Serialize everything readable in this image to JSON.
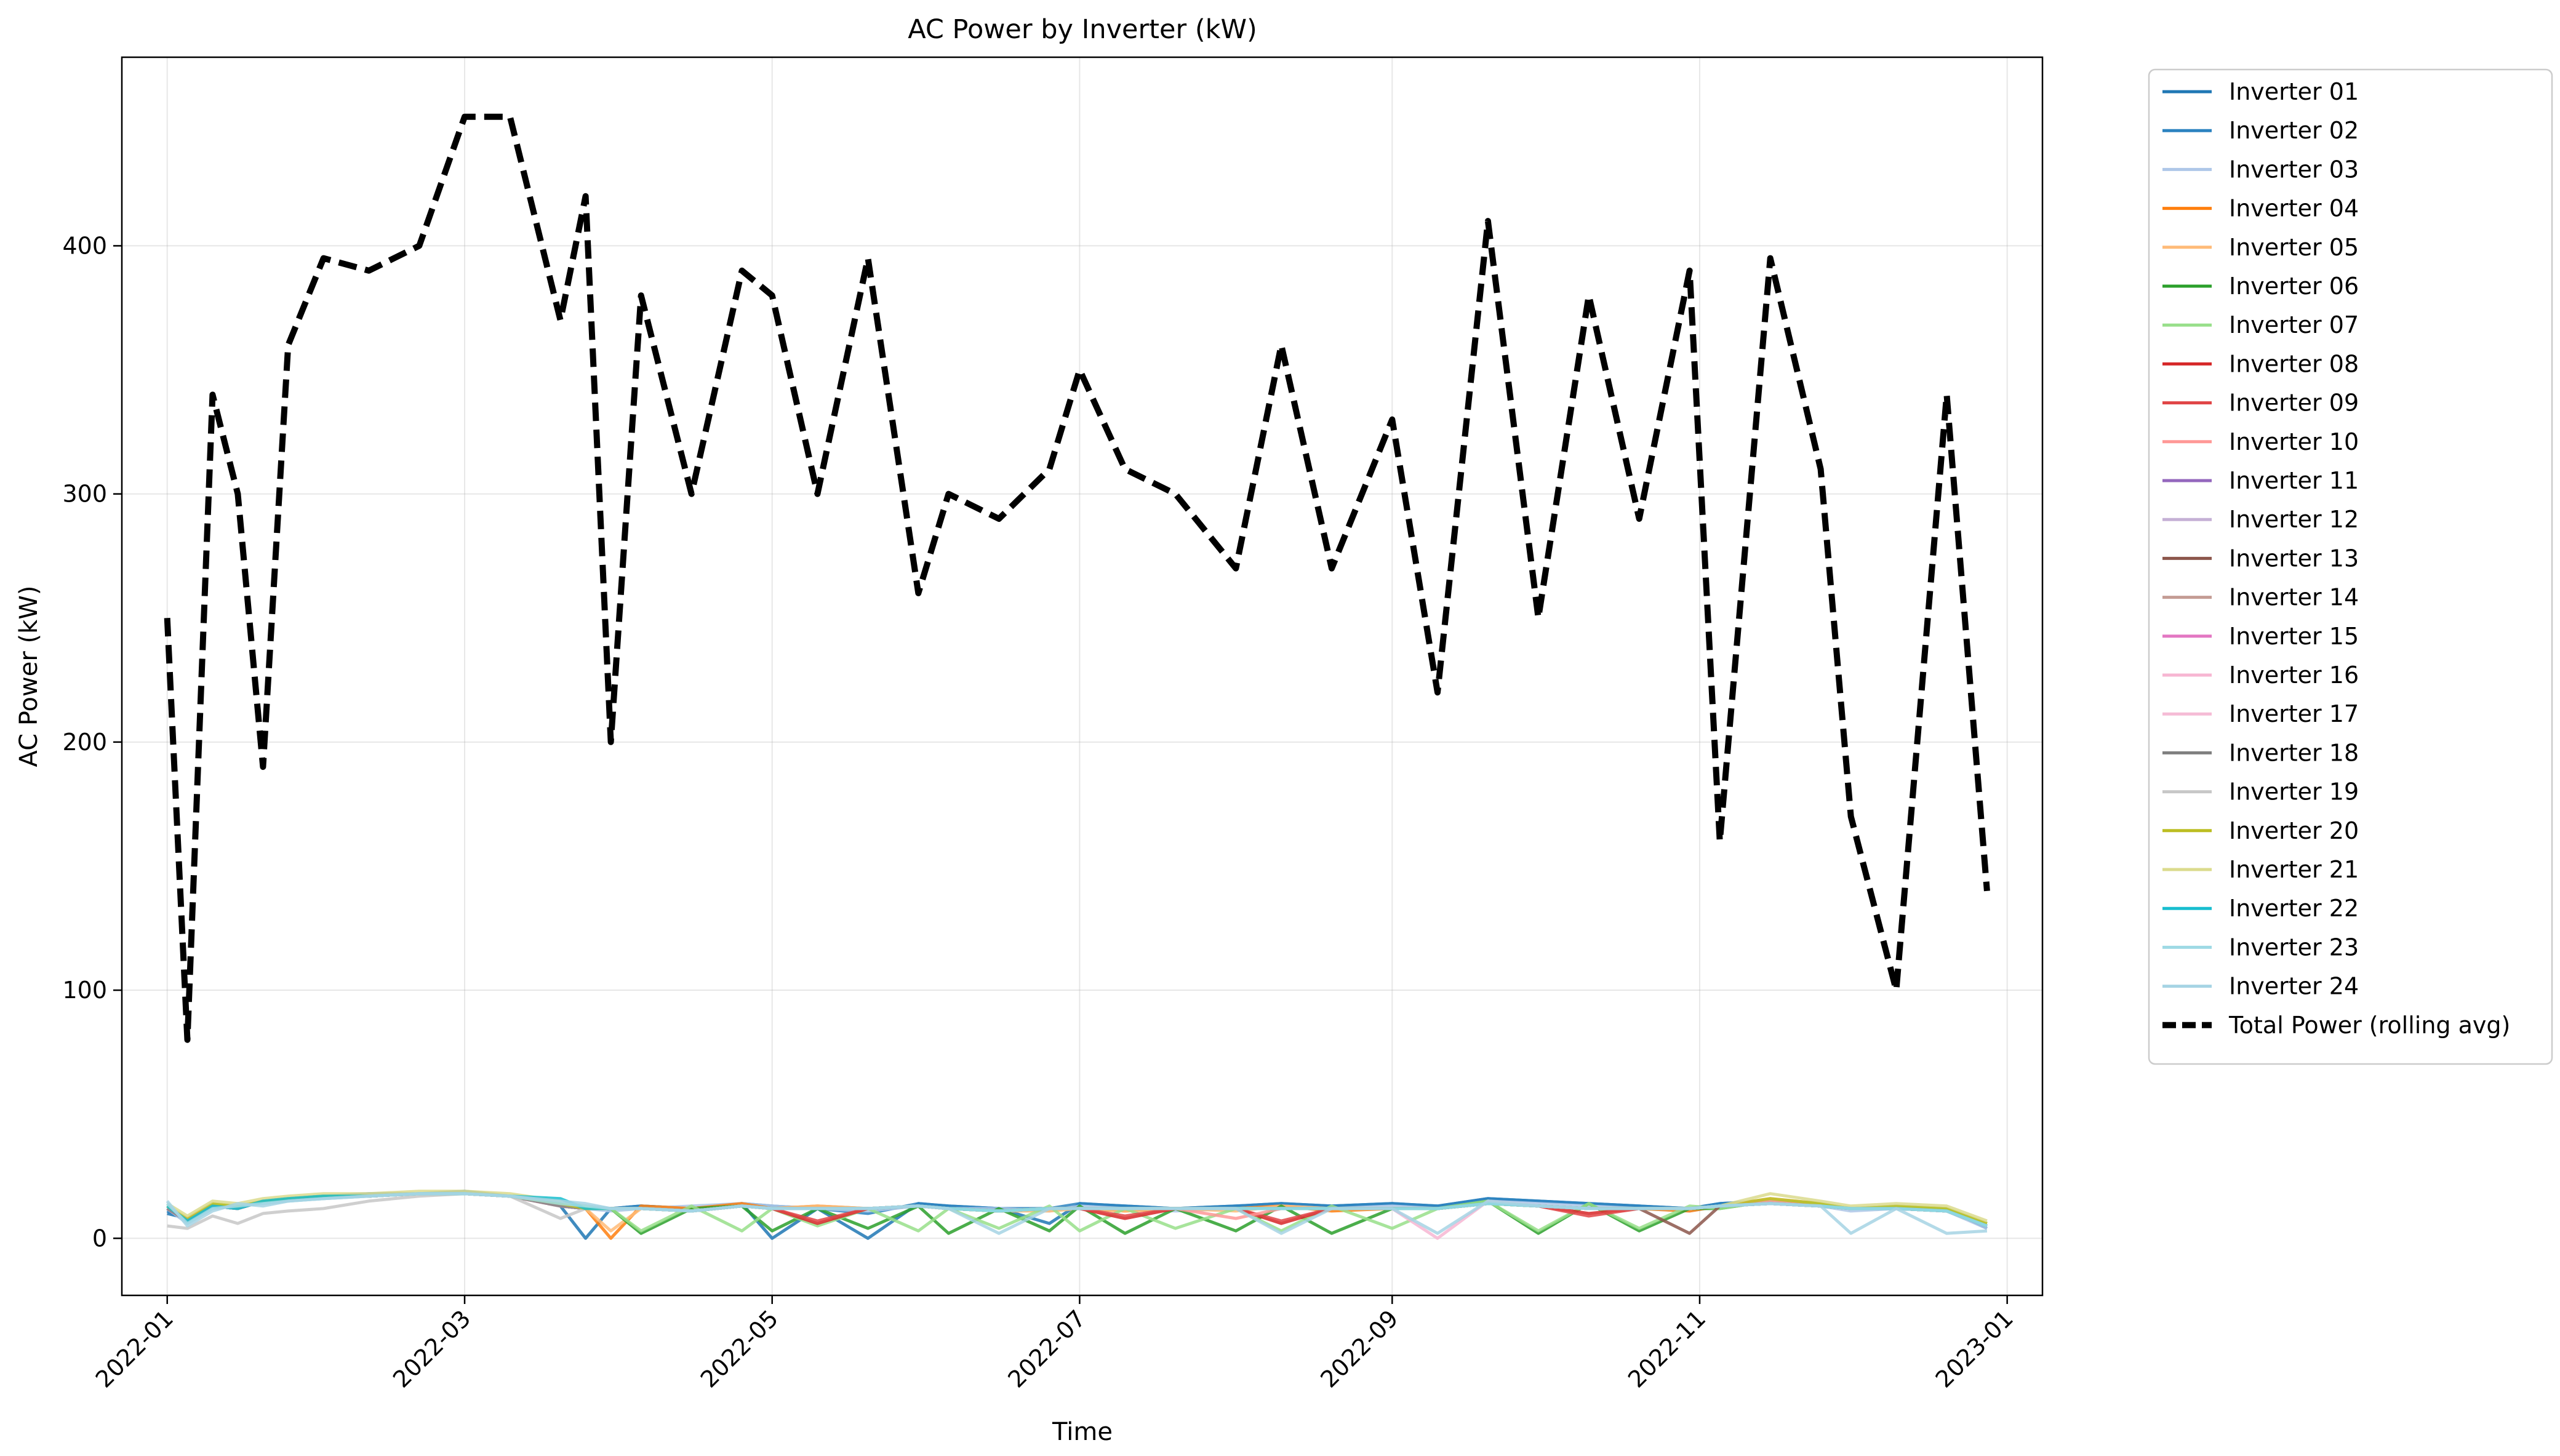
{
  "chart_data": {
    "type": "line",
    "title": "AC Power by Inverter (kW)",
    "xlabel": "Time",
    "ylabel": "AC Power (kW)",
    "x_ticks": [
      "2022-01",
      "2022-03",
      "2022-05",
      "2022-07",
      "2022-09",
      "2022-11",
      "2023-01"
    ],
    "y_ticks": [
      0,
      100,
      200,
      300,
      400
    ],
    "xlim": [
      "2021-12-23",
      "2023-01-08"
    ],
    "ylim": [
      -23,
      476
    ],
    "grid": true,
    "legend_position": "outside-top-right",
    "x": [
      "2022-01-01",
      "2022-01-05",
      "2022-01-10",
      "2022-01-15",
      "2022-01-20",
      "2022-01-25",
      "2022-02-01",
      "2022-02-10",
      "2022-02-20",
      "2022-03-01",
      "2022-03-10",
      "2022-03-20",
      "2022-03-25",
      "2022-03-30",
      "2022-04-05",
      "2022-04-15",
      "2022-04-25",
      "2022-05-01",
      "2022-05-10",
      "2022-05-20",
      "2022-05-30",
      "2022-06-05",
      "2022-06-15",
      "2022-06-25",
      "2022-07-01",
      "2022-07-10",
      "2022-07-20",
      "2022-08-01",
      "2022-08-10",
      "2022-08-20",
      "2022-09-01",
      "2022-09-10",
      "2022-09-20",
      "2022-09-30",
      "2022-10-10",
      "2022-10-20",
      "2022-10-30",
      "2022-11-05",
      "2022-11-15",
      "2022-11-25",
      "2022-12-01",
      "2022-12-10",
      "2022-12-20",
      "2022-12-28"
    ],
    "series": [
      {
        "name": "Total Power (rolling avg)",
        "color": "#000000",
        "values": [
          250,
          80,
          340,
          300,
          190,
          360,
          395,
          390,
          400,
          452,
          452,
          370,
          420,
          200,
          380,
          300,
          390,
          380,
          300,
          395,
          260,
          300,
          290,
          310,
          350,
          310,
          300,
          270,
          360,
          270,
          330,
          220,
          410,
          250,
          380,
          290,
          390,
          160,
          395,
          310,
          170,
          100,
          340,
          140
        ]
      }
    ],
    "inverter_series": [
      {
        "name": "Inverter 01",
        "color": "#1f77b4",
        "values": [
          10,
          8,
          14,
          12,
          15,
          16,
          17,
          17,
          18,
          18,
          17,
          13,
          0,
          12,
          13,
          12,
          14,
          0,
          12,
          0,
          14,
          13,
          12,
          6,
          14,
          13,
          12,
          13,
          14,
          13,
          14,
          13,
          16,
          15,
          14,
          13,
          12,
          14,
          15,
          14,
          12,
          13,
          12,
          4
        ]
      },
      {
        "name": "Inverter 02",
        "color": "#2c83c0",
        "values": [
          11,
          7,
          13,
          12,
          15,
          16,
          17,
          18,
          18,
          19,
          17,
          14,
          13,
          12,
          13,
          12,
          14,
          13,
          12,
          10,
          14,
          13,
          12,
          12,
          14,
          13,
          12,
          13,
          14,
          13,
          14,
          13,
          16,
          15,
          14,
          13,
          12,
          14,
          15,
          14,
          12,
          13,
          12,
          5
        ]
      },
      {
        "name": "Inverter 03",
        "color": "#aec7e8",
        "values": [
          12,
          6,
          12,
          13,
          14,
          15,
          16,
          17,
          18,
          18,
          17,
          13,
          12,
          11,
          12,
          13,
          14,
          13,
          12,
          11,
          13,
          12,
          12,
          11,
          13,
          12,
          11,
          12,
          13,
          12,
          13,
          12,
          15,
          14,
          13,
          12,
          11,
          13,
          14,
          13,
          11,
          12,
          11,
          4
        ]
      },
      {
        "name": "Inverter 04",
        "color": "#ff7f0e",
        "values": [
          12,
          7,
          13,
          12,
          15,
          16,
          17,
          17,
          18,
          18,
          17,
          13,
          12,
          0,
          13,
          12,
          14,
          12,
          13,
          12,
          13,
          12,
          11,
          12,
          12,
          11,
          12,
          12,
          13,
          11,
          12,
          12,
          14,
          13,
          12,
          12,
          11,
          13,
          14,
          13,
          12,
          12,
          11,
          5
        ]
      },
      {
        "name": "Inverter 05",
        "color": "#ffbb78",
        "values": [
          13,
          8,
          14,
          13,
          15,
          16,
          17,
          17,
          18,
          18,
          17,
          14,
          12,
          3,
          12,
          11,
          13,
          12,
          13,
          12,
          13,
          12,
          11,
          11,
          12,
          11,
          12,
          11,
          13,
          12,
          12,
          12,
          14,
          13,
          12,
          12,
          12,
          13,
          16,
          14,
          12,
          13,
          12,
          6
        ]
      },
      {
        "name": "Inverter 06",
        "color": "#2ca02c",
        "values": [
          12,
          7,
          13,
          12,
          15,
          16,
          17,
          17,
          18,
          18,
          17,
          13,
          12,
          12,
          2,
          12,
          13,
          3,
          12,
          4,
          13,
          2,
          12,
          3,
          13,
          2,
          12,
          3,
          13,
          2,
          12,
          12,
          15,
          2,
          14,
          3,
          12,
          12,
          15,
          13,
          12,
          12,
          11,
          5
        ]
      },
      {
        "name": "Inverter 07",
        "color": "#98df8a",
        "values": [
          13,
          8,
          14,
          13,
          15,
          16,
          17,
          17,
          18,
          18,
          17,
          14,
          13,
          12,
          3,
          13,
          3,
          12,
          5,
          12,
          3,
          12,
          4,
          13,
          3,
          12,
          4,
          12,
          3,
          13,
          4,
          12,
          15,
          3,
          14,
          4,
          13,
          12,
          15,
          14,
          12,
          13,
          12,
          6
        ]
      },
      {
        "name": "Inverter 08",
        "color": "#d62728",
        "values": [
          12,
          7,
          13,
          12,
          15,
          16,
          17,
          17,
          18,
          18,
          17,
          13,
          12,
          12,
          12,
          11,
          13,
          12,
          6,
          12,
          13,
          12,
          11,
          12,
          12,
          8,
          12,
          12,
          6,
          12,
          12,
          12,
          14,
          13,
          10,
          12,
          12,
          13,
          14,
          13,
          12,
          12,
          11,
          5
        ]
      },
      {
        "name": "Inverter 09",
        "color": "#e04546",
        "values": [
          12,
          7,
          13,
          12,
          15,
          16,
          17,
          17,
          18,
          18,
          17,
          13,
          12,
          12,
          12,
          11,
          13,
          12,
          7,
          12,
          13,
          12,
          11,
          12,
          12,
          9,
          12,
          12,
          7,
          12,
          12,
          12,
          14,
          13,
          9,
          12,
          12,
          13,
          14,
          13,
          12,
          12,
          11,
          5
        ]
      },
      {
        "name": "Inverter 10",
        "color": "#ff9896",
        "values": [
          12,
          8,
          13,
          12,
          15,
          16,
          17,
          17,
          18,
          18,
          17,
          13,
          12,
          12,
          12,
          11,
          13,
          12,
          12,
          12,
          13,
          12,
          11,
          12,
          12,
          12,
          12,
          8,
          12,
          12,
          12,
          12,
          14,
          13,
          12,
          12,
          12,
          13,
          15,
          13,
          12,
          12,
          11,
          5
        ]
      },
      {
        "name": "Inverter 11",
        "color": "#9467bd",
        "values": [
          12,
          7,
          13,
          12,
          15,
          16,
          17,
          17,
          18,
          18,
          17,
          13,
          12,
          12,
          12,
          11,
          13,
          12,
          12,
          12,
          13,
          12,
          11,
          12,
          12,
          12,
          12,
          12,
          12,
          12,
          12,
          12,
          14,
          13,
          12,
          12,
          12,
          13,
          14,
          13,
          12,
          12,
          11,
          5
        ]
      },
      {
        "name": "Inverter 12",
        "color": "#c5b0d5",
        "values": [
          12,
          7,
          13,
          12,
          15,
          16,
          17,
          17,
          18,
          18,
          17,
          13,
          12,
          12,
          12,
          11,
          13,
          12,
          12,
          12,
          13,
          12,
          11,
          12,
          12,
          12,
          12,
          12,
          12,
          12,
          12,
          12,
          14,
          13,
          12,
          12,
          12,
          13,
          14,
          13,
          12,
          12,
          11,
          5
        ]
      },
      {
        "name": "Inverter 13",
        "color": "#8c564b",
        "values": [
          12,
          7,
          13,
          12,
          15,
          16,
          17,
          17,
          18,
          18,
          17,
          13,
          12,
          12,
          12,
          11,
          13,
          12,
          12,
          12,
          13,
          12,
          11,
          12,
          12,
          12,
          12,
          12,
          12,
          12,
          12,
          12,
          14,
          13,
          12,
          12,
          2,
          13,
          14,
          13,
          12,
          12,
          11,
          5
        ]
      },
      {
        "name": "Inverter 14",
        "color": "#c49c94",
        "values": [
          12,
          7,
          13,
          12,
          15,
          16,
          17,
          17,
          18,
          18,
          17,
          13,
          12,
          12,
          12,
          11,
          13,
          12,
          12,
          12,
          13,
          12,
          11,
          12,
          12,
          12,
          12,
          12,
          12,
          12,
          12,
          12,
          14,
          13,
          12,
          12,
          12,
          13,
          14,
          13,
          12,
          12,
          11,
          5
        ]
      },
      {
        "name": "Inverter 15",
        "color": "#e377c2",
        "values": [
          12,
          7,
          13,
          12,
          15,
          16,
          17,
          17,
          18,
          18,
          17,
          13,
          12,
          12,
          12,
          11,
          13,
          12,
          12,
          12,
          13,
          12,
          11,
          12,
          12,
          12,
          12,
          12,
          12,
          12,
          12,
          12,
          14,
          13,
          12,
          12,
          12,
          13,
          14,
          13,
          12,
          12,
          11,
          5
        ]
      },
      {
        "name": "Inverter 16",
        "color": "#f7b6d2",
        "values": [
          12,
          7,
          13,
          12,
          15,
          16,
          17,
          17,
          18,
          18,
          17,
          13,
          12,
          12,
          12,
          11,
          13,
          12,
          12,
          12,
          13,
          12,
          11,
          12,
          12,
          12,
          12,
          12,
          12,
          12,
          12,
          0,
          15,
          13,
          12,
          12,
          12,
          13,
          14,
          13,
          12,
          12,
          11,
          5
        ]
      },
      {
        "name": "Inverter 17",
        "color": "#f5bcd6",
        "values": [
          12,
          7,
          13,
          12,
          15,
          16,
          17,
          17,
          18,
          18,
          17,
          13,
          12,
          12,
          12,
          11,
          13,
          12,
          12,
          12,
          13,
          12,
          11,
          12,
          12,
          12,
          12,
          12,
          12,
          12,
          12,
          12,
          14,
          13,
          12,
          12,
          12,
          13,
          14,
          13,
          12,
          12,
          11,
          5
        ]
      },
      {
        "name": "Inverter 18",
        "color": "#7f7f7f",
        "values": [
          12,
          7,
          13,
          12,
          15,
          16,
          17,
          17,
          18,
          18,
          17,
          13,
          12,
          12,
          12,
          11,
          13,
          12,
          12,
          12,
          13,
          12,
          11,
          12,
          12,
          12,
          12,
          12,
          12,
          12,
          12,
          12,
          14,
          13,
          12,
          12,
          12,
          13,
          14,
          13,
          12,
          12,
          11,
          5
        ]
      },
      {
        "name": "Inverter 19",
        "color": "#c7c7c7",
        "values": [
          5,
          4,
          9,
          6,
          10,
          11,
          12,
          15,
          17,
          18,
          17,
          8,
          12,
          12,
          12,
          11,
          13,
          12,
          12,
          12,
          13,
          12,
          11,
          12,
          12,
          12,
          12,
          12,
          12,
          12,
          12,
          12,
          14,
          13,
          12,
          12,
          12,
          13,
          14,
          13,
          12,
          12,
          11,
          5
        ]
      },
      {
        "name": "Inverter 20",
        "color": "#bcbd22",
        "values": [
          13,
          8,
          14,
          13,
          15,
          16,
          17,
          17,
          18,
          18,
          17,
          14,
          12,
          12,
          12,
          11,
          13,
          12,
          12,
          12,
          13,
          12,
          11,
          12,
          12,
          12,
          12,
          12,
          12,
          12,
          12,
          12,
          14,
          13,
          12,
          12,
          12,
          13,
          16,
          14,
          12,
          13,
          12,
          6
        ]
      },
      {
        "name": "Inverter 21",
        "color": "#dbdb8d",
        "values": [
          14,
          9,
          15,
          14,
          16,
          17,
          18,
          18,
          19,
          19,
          18,
          15,
          13,
          12,
          12,
          11,
          13,
          12,
          12,
          12,
          13,
          12,
          11,
          12,
          12,
          12,
          12,
          12,
          12,
          12,
          12,
          12,
          14,
          13,
          12,
          12,
          12,
          13,
          18,
          15,
          13,
          14,
          13,
          7
        ]
      },
      {
        "name": "Inverter 22",
        "color": "#17becf",
        "values": [
          13,
          7,
          13,
          12,
          15,
          16,
          17,
          17,
          18,
          18,
          17,
          16,
          12,
          12,
          12,
          11,
          13,
          12,
          12,
          12,
          13,
          12,
          11,
          12,
          12,
          12,
          12,
          12,
          12,
          12,
          12,
          12,
          14,
          13,
          12,
          12,
          12,
          13,
          14,
          13,
          12,
          12,
          11,
          5
        ]
      },
      {
        "name": "Inverter 23",
        "color": "#9edae5",
        "values": [
          14,
          6,
          12,
          13,
          14,
          15,
          16,
          17,
          18,
          18,
          17,
          14,
          13,
          12,
          12,
          11,
          13,
          12,
          12,
          12,
          13,
          12,
          11,
          12,
          12,
          12,
          12,
          12,
          12,
          12,
          12,
          12,
          14,
          13,
          12,
          12,
          12,
          13,
          14,
          13,
          12,
          12,
          11,
          5
        ]
      },
      {
        "name": "Inverter 24",
        "color": "#a6d4e4",
        "values": [
          15,
          5,
          11,
          14,
          13,
          15,
          16,
          17,
          18,
          18,
          17,
          15,
          14,
          12,
          12,
          11,
          13,
          12,
          12,
          12,
          13,
          12,
          2,
          12,
          12,
          12,
          12,
          12,
          2,
          12,
          12,
          2,
          15,
          13,
          12,
          12,
          12,
          13,
          14,
          13,
          2,
          12,
          2,
          3
        ]
      }
    ]
  }
}
